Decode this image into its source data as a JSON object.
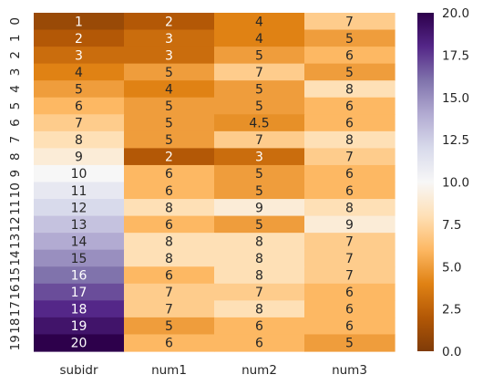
{
  "chart_data": {
    "type": "heatmap",
    "colormap": "PuOr",
    "vmin": 0.0,
    "vmax": 20.0,
    "columns": [
      "subidr",
      "num1",
      "num2",
      "num3"
    ],
    "rows": [
      "0",
      "1",
      "2",
      "3",
      "4",
      "5",
      "6",
      "7",
      "8",
      "9",
      "10",
      "11",
      "12",
      "13",
      "14",
      "15",
      "16",
      "17",
      "18",
      "19"
    ],
    "values": [
      [
        1,
        2,
        4,
        7
      ],
      [
        2,
        3,
        4,
        5
      ],
      [
        3,
        3,
        5,
        6
      ],
      [
        4,
        5,
        7,
        5
      ],
      [
        5,
        4,
        5,
        8
      ],
      [
        6,
        5,
        5,
        6
      ],
      [
        7,
        5,
        4.5,
        6
      ],
      [
        8,
        5,
        7,
        8
      ],
      [
        9,
        2,
        3,
        7
      ],
      [
        10,
        6,
        5,
        6
      ],
      [
        11,
        6,
        5,
        6
      ],
      [
        12,
        8,
        9,
        8
      ],
      [
        13,
        6,
        5,
        9
      ],
      [
        14,
        8,
        8,
        7
      ],
      [
        15,
        8,
        8,
        7
      ],
      [
        16,
        6,
        8,
        7
      ],
      [
        17,
        7,
        7,
        6
      ],
      [
        18,
        7,
        8,
        6
      ],
      [
        19,
        5,
        6,
        6
      ],
      [
        20,
        6,
        6,
        5
      ]
    ],
    "annotations": [
      [
        "1",
        "2",
        "4",
        "7"
      ],
      [
        "2",
        "3",
        "4",
        "5"
      ],
      [
        "3",
        "3",
        "5",
        "6"
      ],
      [
        "4",
        "5",
        "7",
        "5"
      ],
      [
        "5",
        "4",
        "5",
        "8"
      ],
      [
        "6",
        "5",
        "5",
        "6"
      ],
      [
        "7",
        "5",
        "4.5",
        "6"
      ],
      [
        "8",
        "5",
        "7",
        "8"
      ],
      [
        "9",
        "2",
        "3",
        "7"
      ],
      [
        "10",
        "6",
        "5",
        "6"
      ],
      [
        "11",
        "6",
        "5",
        "6"
      ],
      [
        "12",
        "8",
        "9",
        "8"
      ],
      [
        "13",
        "6",
        "5",
        "9"
      ],
      [
        "14",
        "8",
        "8",
        "7"
      ],
      [
        "15",
        "8",
        "8",
        "7"
      ],
      [
        "16",
        "6",
        "8",
        "7"
      ],
      [
        "17",
        "7",
        "7",
        "6"
      ],
      [
        "18",
        "7",
        "8",
        "6"
      ],
      [
        "19",
        "5",
        "6",
        "6"
      ],
      [
        "20",
        "6",
        "6",
        "5"
      ]
    ],
    "colorbar": {
      "ticks": [
        "0.0",
        "2.5",
        "5.0",
        "7.5",
        "10.0",
        "12.5",
        "15.0",
        "17.5",
        "20.0"
      ],
      "tick_values": [
        0,
        2.5,
        5,
        7.5,
        10,
        12.5,
        15,
        17.5,
        20
      ]
    },
    "title": "",
    "xlabel": "",
    "ylabel": ""
  }
}
